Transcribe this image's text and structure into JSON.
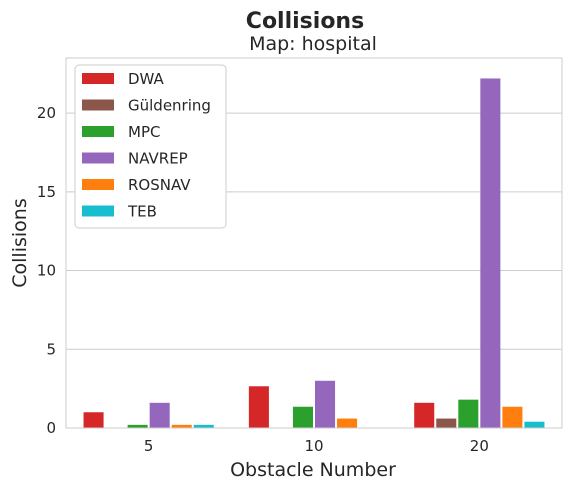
{
  "chart_data": {
    "type": "bar",
    "title": "Collisions",
    "subtitle": "Map: hospital",
    "xlabel": "Obstacle Number",
    "ylabel": "Collisions",
    "categories": [
      "5",
      "10",
      "20"
    ],
    "ylim": [
      0,
      23.5
    ],
    "yticks": [
      0,
      5,
      10,
      15,
      20
    ],
    "grid": "horizontal",
    "legend_position": "top-left",
    "series": [
      {
        "name": "DWA",
        "color": "#d62728",
        "values": [
          1.0,
          2.65,
          1.6
        ]
      },
      {
        "name": "Güldenring",
        "color": "#8c564b",
        "values": [
          0,
          0,
          0.6
        ]
      },
      {
        "name": "MPC",
        "color": "#2ca02c",
        "values": [
          0.2,
          1.35,
          1.8
        ]
      },
      {
        "name": "NAVREP",
        "color": "#9467bd",
        "values": [
          1.6,
          3.0,
          22.2
        ]
      },
      {
        "name": "ROSNAV",
        "color": "#ff7f0e",
        "values": [
          0.2,
          0.6,
          1.35
        ]
      },
      {
        "name": "TEB",
        "color": "#17becf",
        "values": [
          0.2,
          0,
          0.4
        ]
      }
    ]
  }
}
